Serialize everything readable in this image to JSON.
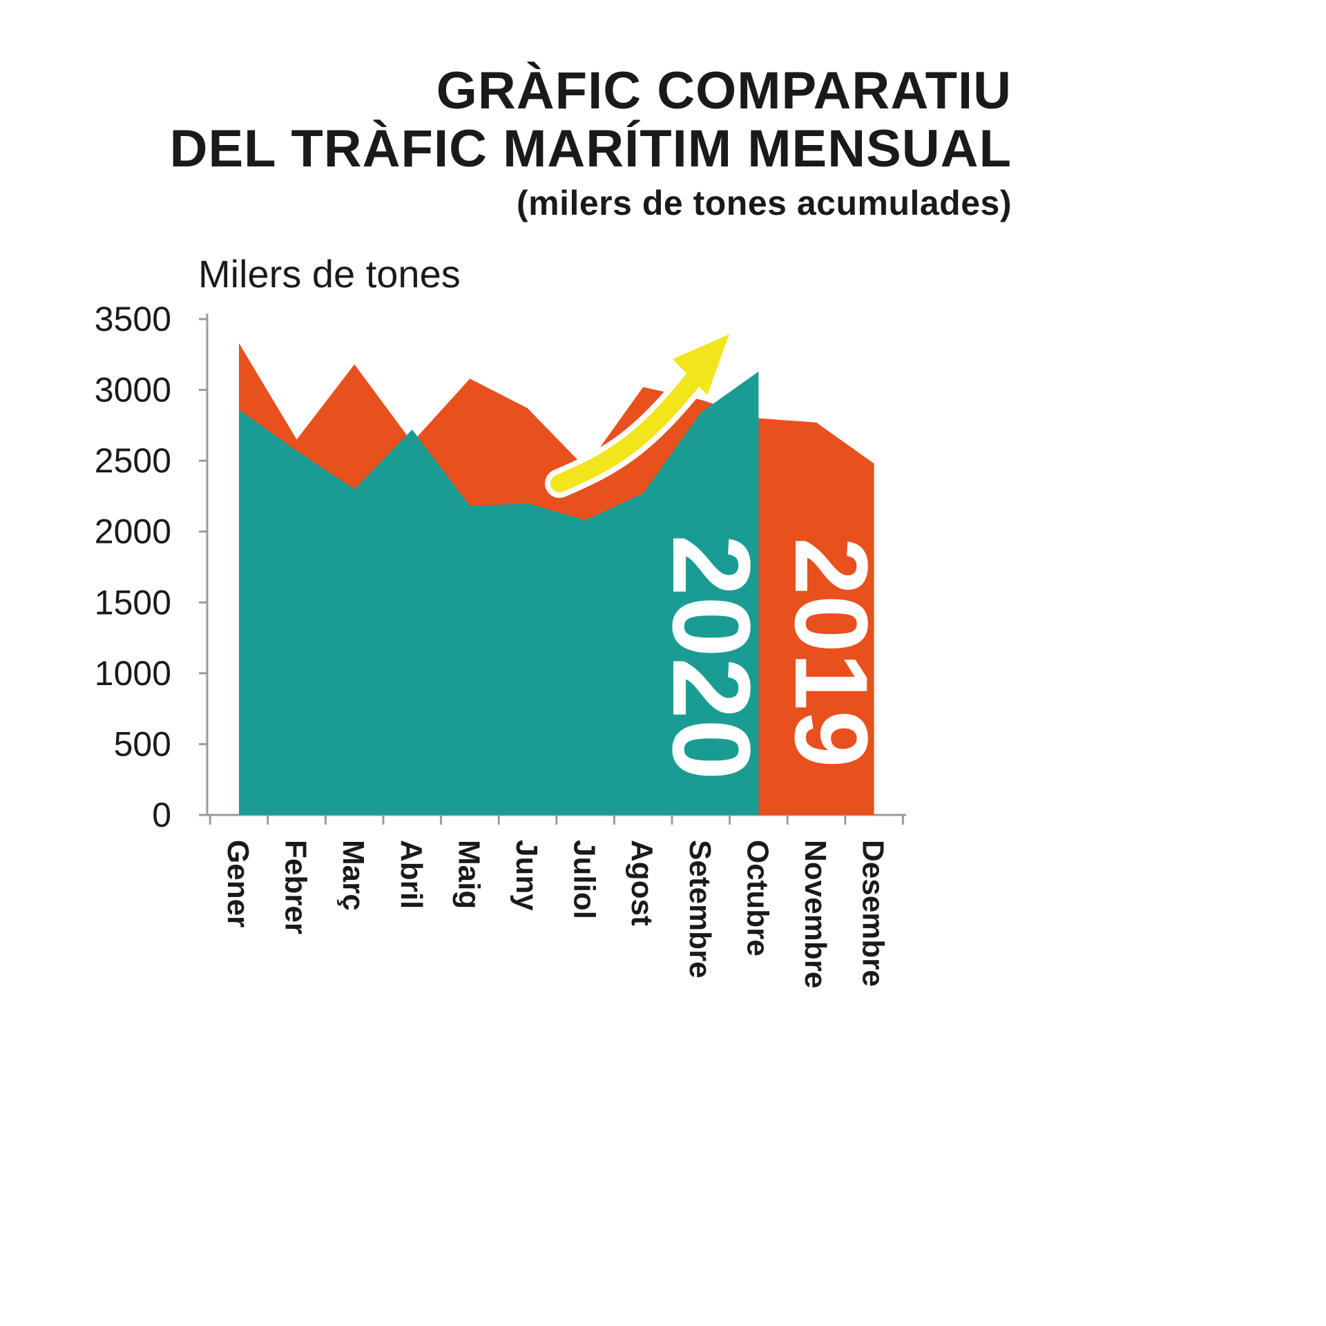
{
  "title": {
    "line1": "GRÀFIC COMPARATIU",
    "line2": "DEL TRÀFIC MARÍTIM MENSUAL",
    "line3": "(milers de tones acumulades)"
  },
  "chart_data": {
    "type": "area",
    "title": "GRÀFIC COMPARATIU DEL TRÀFIC MARÍTIM MENSUAL (milers de tones acumulades)",
    "y_axis_label": "Milers de tones",
    "xlabel": "",
    "ylabel": "Milers de tones",
    "ylim": [
      0,
      3500
    ],
    "y_ticks": [
      0,
      500,
      1000,
      1500,
      2000,
      2500,
      3000,
      3500
    ],
    "grid": false,
    "legend_position": "labels rotated inside areas",
    "categories": [
      "Gener",
      "Febrer",
      "Març",
      "Abril",
      "Maig",
      "Juny",
      "Juliol",
      "Agost",
      "Setembre",
      "Octubre",
      "Novembre",
      "Desembre"
    ],
    "series": [
      {
        "name": "2019",
        "color": "#E8501E",
        "values": [
          3330,
          2650,
          3180,
          2630,
          3080,
          2870,
          2450,
          3020,
          2930,
          2800,
          2770,
          2480
        ]
      },
      {
        "name": "2020",
        "color": "#1A9C94",
        "values": [
          2860,
          2570,
          2300,
          2720,
          2180,
          2200,
          2080,
          2270,
          2840,
          3130,
          null,
          null
        ]
      }
    ],
    "annotations": [
      {
        "type": "arrow",
        "color": "#F2E51C",
        "outline": "#ffffff",
        "meaning": "upward-trend of 2020 traffic from Juliol to Octubre"
      }
    ]
  },
  "colors": {
    "series_2019": "#E8501E",
    "series_2020": "#1A9C94",
    "arrow": "#F2E51C",
    "axis": "#9a9a9a",
    "text": "#1a1a1a",
    "background": "#ffffff",
    "series_label_text": "#ffffff"
  }
}
